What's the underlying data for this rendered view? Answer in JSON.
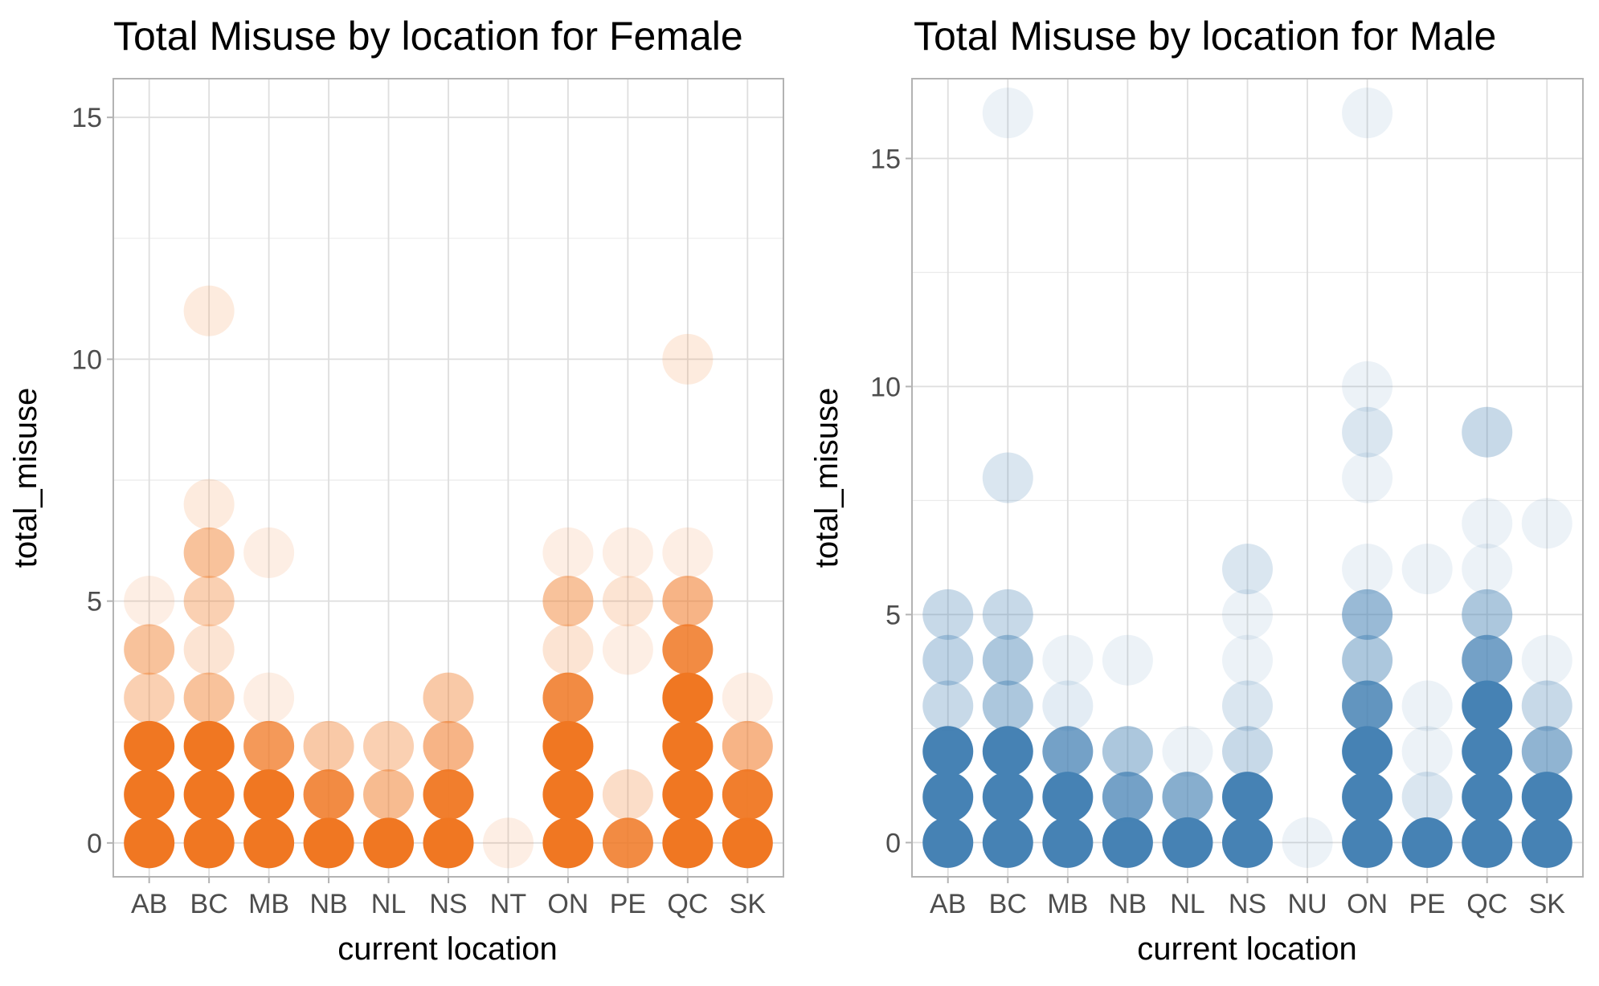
{
  "chart_data": [
    {
      "type": "scatter",
      "title": "Total Misuse by location for Female",
      "xlabel": "current location",
      "ylabel": "total_misuse",
      "categories": [
        "AB",
        "BC",
        "MB",
        "NB",
        "NL",
        "NS",
        "NT",
        "ON",
        "PE",
        "QC",
        "SK"
      ],
      "yticks": [
        0,
        5,
        10,
        15
      ],
      "ylim": [
        -0.7,
        15.8
      ],
      "grid": true,
      "color": "#F07722",
      "points": [
        {
          "x": "AB",
          "y": 0,
          "alpha": 1.0
        },
        {
          "x": "AB",
          "y": 1,
          "alpha": 1.0
        },
        {
          "x": "AB",
          "y": 2,
          "alpha": 1.0
        },
        {
          "x": "AB",
          "y": 3,
          "alpha": 0.35
        },
        {
          "x": "AB",
          "y": 4,
          "alpha": 0.45
        },
        {
          "x": "AB",
          "y": 5,
          "alpha": 0.12
        },
        {
          "x": "BC",
          "y": 0,
          "alpha": 1.0
        },
        {
          "x": "BC",
          "y": 1,
          "alpha": 1.0
        },
        {
          "x": "BC",
          "y": 2,
          "alpha": 1.0
        },
        {
          "x": "BC",
          "y": 3,
          "alpha": 0.45
        },
        {
          "x": "BC",
          "y": 4,
          "alpha": 0.2
        },
        {
          "x": "BC",
          "y": 5,
          "alpha": 0.35
        },
        {
          "x": "BC",
          "y": 6,
          "alpha": 0.45
        },
        {
          "x": "BC",
          "y": 7,
          "alpha": 0.15
        },
        {
          "x": "BC",
          "y": 11,
          "alpha": 0.15
        },
        {
          "x": "MB",
          "y": 0,
          "alpha": 1.0
        },
        {
          "x": "MB",
          "y": 1,
          "alpha": 1.0
        },
        {
          "x": "MB",
          "y": 2,
          "alpha": 0.75
        },
        {
          "x": "MB",
          "y": 3,
          "alpha": 0.12
        },
        {
          "x": "MB",
          "y": 6,
          "alpha": 0.12
        },
        {
          "x": "NB",
          "y": 0,
          "alpha": 1.0
        },
        {
          "x": "NB",
          "y": 1,
          "alpha": 0.85
        },
        {
          "x": "NB",
          "y": 2,
          "alpha": 0.4
        },
        {
          "x": "NL",
          "y": 0,
          "alpha": 1.0
        },
        {
          "x": "NL",
          "y": 1,
          "alpha": 0.5
        },
        {
          "x": "NL",
          "y": 2,
          "alpha": 0.35
        },
        {
          "x": "NS",
          "y": 0,
          "alpha": 1.0
        },
        {
          "x": "NS",
          "y": 1,
          "alpha": 0.95
        },
        {
          "x": "NS",
          "y": 2,
          "alpha": 0.55
        },
        {
          "x": "NS",
          "y": 3,
          "alpha": 0.4
        },
        {
          "x": "NT",
          "y": 0,
          "alpha": 0.12
        },
        {
          "x": "ON",
          "y": 0,
          "alpha": 1.0
        },
        {
          "x": "ON",
          "y": 1,
          "alpha": 1.0
        },
        {
          "x": "ON",
          "y": 2,
          "alpha": 1.0
        },
        {
          "x": "ON",
          "y": 3,
          "alpha": 0.85
        },
        {
          "x": "ON",
          "y": 4,
          "alpha": 0.2
        },
        {
          "x": "ON",
          "y": 5,
          "alpha": 0.45
        },
        {
          "x": "ON",
          "y": 6,
          "alpha": 0.12
        },
        {
          "x": "PE",
          "y": 0,
          "alpha": 0.85
        },
        {
          "x": "PE",
          "y": 1,
          "alpha": 0.25
        },
        {
          "x": "PE",
          "y": 4,
          "alpha": 0.12
        },
        {
          "x": "PE",
          "y": 5,
          "alpha": 0.2
        },
        {
          "x": "PE",
          "y": 6,
          "alpha": 0.12
        },
        {
          "x": "QC",
          "y": 0,
          "alpha": 1.0
        },
        {
          "x": "QC",
          "y": 1,
          "alpha": 1.0
        },
        {
          "x": "QC",
          "y": 2,
          "alpha": 1.0
        },
        {
          "x": "QC",
          "y": 3,
          "alpha": 1.0
        },
        {
          "x": "QC",
          "y": 4,
          "alpha": 0.85
        },
        {
          "x": "QC",
          "y": 5,
          "alpha": 0.55
        },
        {
          "x": "QC",
          "y": 6,
          "alpha": 0.12
        },
        {
          "x": "QC",
          "y": 10,
          "alpha": 0.15
        },
        {
          "x": "SK",
          "y": 0,
          "alpha": 1.0
        },
        {
          "x": "SK",
          "y": 1,
          "alpha": 0.95
        },
        {
          "x": "SK",
          "y": 2,
          "alpha": 0.55
        },
        {
          "x": "SK",
          "y": 3,
          "alpha": 0.12
        }
      ]
    },
    {
      "type": "scatter",
      "title": "Total Misuse by location for Male",
      "xlabel": "current location",
      "ylabel": "total_misuse",
      "categories": [
        "AB",
        "BC",
        "MB",
        "NB",
        "NL",
        "NS",
        "NU",
        "ON",
        "PE",
        "QC",
        "SK"
      ],
      "yticks": [
        0,
        5,
        10,
        15
      ],
      "ylim": [
        -0.75,
        16.75
      ],
      "grid": true,
      "color": "#4682B4",
      "points": [
        {
          "x": "AB",
          "y": 0,
          "alpha": 1.0
        },
        {
          "x": "AB",
          "y": 1,
          "alpha": 1.0
        },
        {
          "x": "AB",
          "y": 2,
          "alpha": 1.0
        },
        {
          "x": "AB",
          "y": 3,
          "alpha": 0.3
        },
        {
          "x": "AB",
          "y": 4,
          "alpha": 0.35
        },
        {
          "x": "AB",
          "y": 5,
          "alpha": 0.3
        },
        {
          "x": "BC",
          "y": 0,
          "alpha": 1.0
        },
        {
          "x": "BC",
          "y": 1,
          "alpha": 1.0
        },
        {
          "x": "BC",
          "y": 2,
          "alpha": 1.0
        },
        {
          "x": "BC",
          "y": 3,
          "alpha": 0.45
        },
        {
          "x": "BC",
          "y": 4,
          "alpha": 0.45
        },
        {
          "x": "BC",
          "y": 5,
          "alpha": 0.3
        },
        {
          "x": "BC",
          "y": 8,
          "alpha": 0.2
        },
        {
          "x": "BC",
          "y": 16,
          "alpha": 0.1
        },
        {
          "x": "MB",
          "y": 0,
          "alpha": 1.0
        },
        {
          "x": "MB",
          "y": 1,
          "alpha": 1.0
        },
        {
          "x": "MB",
          "y": 2,
          "alpha": 0.75
        },
        {
          "x": "MB",
          "y": 3,
          "alpha": 0.15
        },
        {
          "x": "MB",
          "y": 4,
          "alpha": 0.1
        },
        {
          "x": "NB",
          "y": 0,
          "alpha": 1.0
        },
        {
          "x": "NB",
          "y": 1,
          "alpha": 0.75
        },
        {
          "x": "NB",
          "y": 2,
          "alpha": 0.45
        },
        {
          "x": "NB",
          "y": 4,
          "alpha": 0.1
        },
        {
          "x": "NL",
          "y": 0,
          "alpha": 1.0
        },
        {
          "x": "NL",
          "y": 1,
          "alpha": 0.65
        },
        {
          "x": "NL",
          "y": 2,
          "alpha": 0.1
        },
        {
          "x": "NS",
          "y": 0,
          "alpha": 1.0
        },
        {
          "x": "NS",
          "y": 1,
          "alpha": 1.0
        },
        {
          "x": "NS",
          "y": 2,
          "alpha": 0.3
        },
        {
          "x": "NS",
          "y": 3,
          "alpha": 0.2
        },
        {
          "x": "NS",
          "y": 4,
          "alpha": 0.1
        },
        {
          "x": "NS",
          "y": 5,
          "alpha": 0.1
        },
        {
          "x": "NS",
          "y": 6,
          "alpha": 0.2
        },
        {
          "x": "NU",
          "y": 0,
          "alpha": 0.1
        },
        {
          "x": "ON",
          "y": 0,
          "alpha": 1.0
        },
        {
          "x": "ON",
          "y": 1,
          "alpha": 1.0
        },
        {
          "x": "ON",
          "y": 2,
          "alpha": 1.0
        },
        {
          "x": "ON",
          "y": 3,
          "alpha": 0.85
        },
        {
          "x": "ON",
          "y": 4,
          "alpha": 0.45
        },
        {
          "x": "ON",
          "y": 5,
          "alpha": 0.55
        },
        {
          "x": "ON",
          "y": 6,
          "alpha": 0.1
        },
        {
          "x": "ON",
          "y": 8,
          "alpha": 0.1
        },
        {
          "x": "ON",
          "y": 9,
          "alpha": 0.2
        },
        {
          "x": "ON",
          "y": 10,
          "alpha": 0.1
        },
        {
          "x": "ON",
          "y": 16,
          "alpha": 0.1
        },
        {
          "x": "PE",
          "y": 0,
          "alpha": 1.0
        },
        {
          "x": "PE",
          "y": 1,
          "alpha": 0.2
        },
        {
          "x": "PE",
          "y": 2,
          "alpha": 0.1
        },
        {
          "x": "PE",
          "y": 3,
          "alpha": 0.1
        },
        {
          "x": "PE",
          "y": 6,
          "alpha": 0.1
        },
        {
          "x": "QC",
          "y": 0,
          "alpha": 1.0
        },
        {
          "x": "QC",
          "y": 1,
          "alpha": 1.0
        },
        {
          "x": "QC",
          "y": 2,
          "alpha": 1.0
        },
        {
          "x": "QC",
          "y": 3,
          "alpha": 1.0
        },
        {
          "x": "QC",
          "y": 4,
          "alpha": 0.75
        },
        {
          "x": "QC",
          "y": 5,
          "alpha": 0.45
        },
        {
          "x": "QC",
          "y": 6,
          "alpha": 0.1
        },
        {
          "x": "QC",
          "y": 7,
          "alpha": 0.1
        },
        {
          "x": "QC",
          "y": 9,
          "alpha": 0.3
        },
        {
          "x": "SK",
          "y": 0,
          "alpha": 1.0
        },
        {
          "x": "SK",
          "y": 1,
          "alpha": 1.0
        },
        {
          "x": "SK",
          "y": 2,
          "alpha": 0.6
        },
        {
          "x": "SK",
          "y": 3,
          "alpha": 0.3
        },
        {
          "x": "SK",
          "y": 4,
          "alpha": 0.1
        },
        {
          "x": "SK",
          "y": 7,
          "alpha": 0.1
        }
      ]
    }
  ]
}
